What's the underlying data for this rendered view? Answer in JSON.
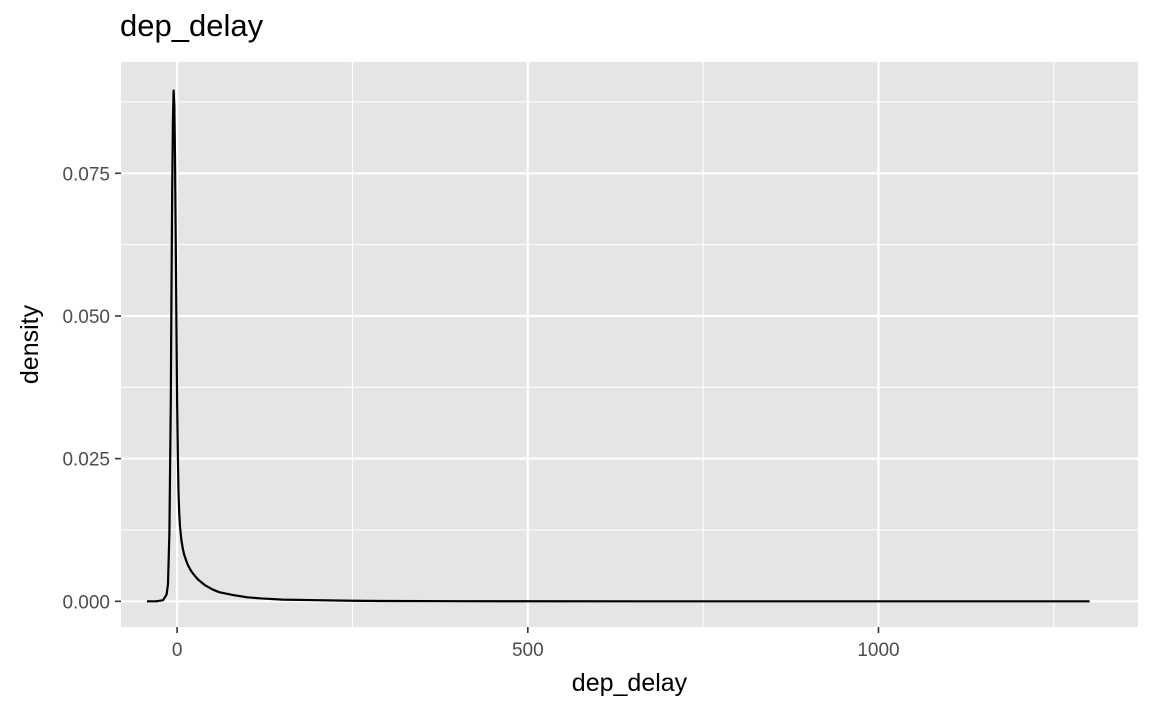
{
  "chart_data": {
    "type": "line",
    "title": "dep_delay",
    "xlabel": "dep_delay",
    "ylabel": "density",
    "xlim": [
      -80,
      1370
    ],
    "ylim": [
      -0.0045,
      0.0945
    ],
    "x_ticks": [
      0,
      500,
      1000
    ],
    "x_tick_labels": [
      "0",
      "500",
      "1000"
    ],
    "y_ticks": [
      0.0,
      0.025,
      0.05,
      0.075
    ],
    "y_tick_labels": [
      "0.000",
      "0.025",
      "0.050",
      "0.075"
    ],
    "grid": true,
    "legend": "none",
    "colors": {
      "panel": "#e5e5e5",
      "grid": "#ffffff",
      "line": "#000000"
    },
    "series": [
      {
        "x": [
          -43,
          -30,
          -20,
          -15,
          -13,
          -11,
          -9,
          -8,
          -7,
          -6,
          -5,
          -4,
          -3,
          -2,
          -1,
          0,
          1,
          2,
          3,
          4,
          6,
          8,
          10,
          13,
          16,
          20,
          25,
          30,
          40,
          50,
          60,
          80,
          100,
          120,
          150,
          200,
          250,
          300,
          400,
          500,
          700,
          900,
          1100,
          1301
        ],
        "y": [
          0.0,
          0.0,
          0.0002,
          0.0012,
          0.003,
          0.012,
          0.035,
          0.055,
          0.072,
          0.084,
          0.0895,
          0.087,
          0.078,
          0.064,
          0.049,
          0.035,
          0.026,
          0.019,
          0.0155,
          0.0133,
          0.0108,
          0.0093,
          0.0082,
          0.0071,
          0.0062,
          0.0053,
          0.0045,
          0.0038,
          0.0028,
          0.0021,
          0.0016,
          0.0011,
          0.0007,
          0.0005,
          0.0003,
          0.0002,
          0.0001,
          5e-05,
          2e-05,
          1e-05,
          0.0,
          0.0,
          0.0,
          0.0
        ]
      }
    ]
  }
}
